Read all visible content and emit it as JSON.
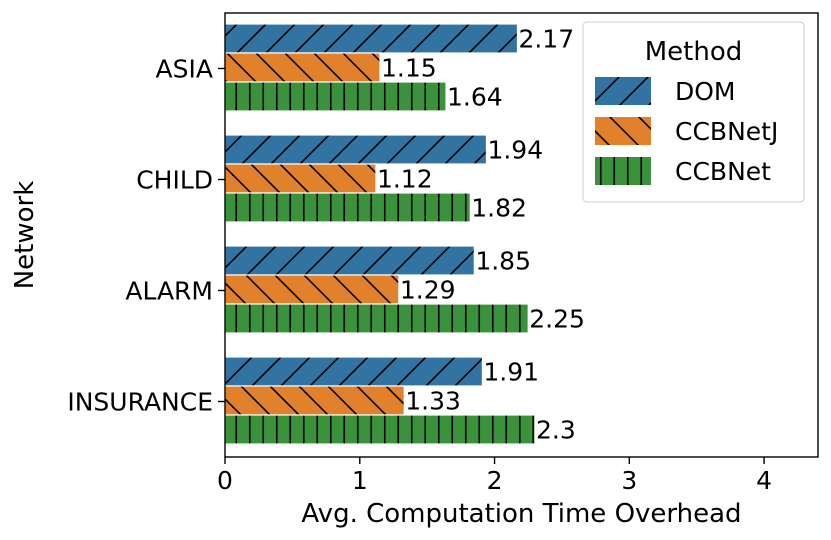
{
  "chart_data": {
    "type": "bar",
    "orientation": "horizontal",
    "categories": [
      "ASIA",
      "CHILD",
      "ALARM",
      "INSURANCE"
    ],
    "series": [
      {
        "name": "DOM",
        "values": [
          2.17,
          1.94,
          1.85,
          1.91
        ],
        "labels": [
          "2.17",
          "1.94",
          "1.85",
          "1.91"
        ],
        "color": "#3274a1",
        "hatch": "forward-slash"
      },
      {
        "name": "CCBNetJ",
        "values": [
          1.15,
          1.12,
          1.29,
          1.33
        ],
        "labels": [
          "1.15",
          "1.12",
          "1.29",
          "1.33"
        ],
        "color": "#e1812c",
        "hatch": "back-slash"
      },
      {
        "name": "CCBNet",
        "values": [
          1.64,
          1.82,
          2.25,
          2.3
        ],
        "labels": [
          "1.64",
          "1.82",
          "2.25",
          "2.3"
        ],
        "color": "#3a923a",
        "hatch": "vertical"
      }
    ],
    "title": "",
    "xlabel": "Avg. Computation Time Overhead",
    "ylabel": "Network",
    "xlim": [
      0,
      4.4
    ],
    "xticks": [
      0,
      1,
      2,
      3,
      4
    ],
    "xtick_labels": [
      "0",
      "1",
      "2",
      "3",
      "4"
    ],
    "legend_title": "Method",
    "legend_position": "top-right",
    "grid": false
  }
}
